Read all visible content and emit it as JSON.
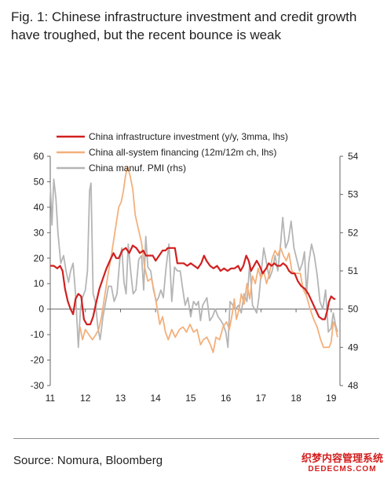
{
  "title": "Fig. 1: Chinese infrastructure investment and credit growth have troughed, but the recent bounce is weak",
  "source": "Source: Nomura, Bloomberg",
  "watermark": {
    "line1": "织梦内容管理系统",
    "line2": "DEDECMS.COM"
  },
  "chart_data": {
    "type": "line",
    "title": "",
    "xlabel": "",
    "ylabel": "",
    "x_ticks": [
      "11",
      "12",
      "13",
      "14",
      "15",
      "16",
      "17",
      "18",
      "19"
    ],
    "x_range": [
      2011.0,
      2019.25
    ],
    "left_axis": {
      "range": [
        -30,
        60
      ],
      "ticks": [
        -30,
        -20,
        -10,
        0,
        10,
        20,
        30,
        40,
        50,
        60
      ]
    },
    "right_axis": {
      "range": [
        48,
        54
      ],
      "ticks": [
        48,
        49,
        50,
        51,
        52,
        53,
        54
      ]
    },
    "legend_position": "top-left",
    "grid": false,
    "series": [
      {
        "name": "China infrastructure investment (y/y, 3mma, lhs)",
        "color": "#d11f1f",
        "axis": "left",
        "points": [
          [
            2011.0,
            17
          ],
          [
            2011.1,
            17
          ],
          [
            2011.2,
            16
          ],
          [
            2011.28,
            17
          ],
          [
            2011.35,
            15
          ],
          [
            2011.42,
            8
          ],
          [
            2011.5,
            3
          ],
          [
            2011.58,
            0
          ],
          [
            2011.65,
            -2
          ],
          [
            2011.72,
            4
          ],
          [
            2011.8,
            6
          ],
          [
            2011.88,
            5
          ],
          [
            2011.96,
            -4
          ],
          [
            2012.04,
            -6
          ],
          [
            2012.14,
            -6
          ],
          [
            2012.22,
            -3
          ],
          [
            2012.3,
            2
          ],
          [
            2012.4,
            8
          ],
          [
            2012.5,
            12
          ],
          [
            2012.6,
            16
          ],
          [
            2012.7,
            19
          ],
          [
            2012.8,
            22
          ],
          [
            2012.88,
            20
          ],
          [
            2012.95,
            20
          ],
          [
            2013.05,
            23
          ],
          [
            2013.15,
            24
          ],
          [
            2013.25,
            22
          ],
          [
            2013.35,
            25
          ],
          [
            2013.45,
            24
          ],
          [
            2013.55,
            22
          ],
          [
            2013.65,
            23
          ],
          [
            2013.72,
            21
          ],
          [
            2013.82,
            21
          ],
          [
            2013.92,
            21
          ],
          [
            2014.0,
            19
          ],
          [
            2014.1,
            21
          ],
          [
            2014.2,
            23
          ],
          [
            2014.28,
            23
          ],
          [
            2014.35,
            24
          ],
          [
            2014.45,
            24
          ],
          [
            2014.55,
            24
          ],
          [
            2014.62,
            18
          ],
          [
            2014.7,
            18
          ],
          [
            2014.8,
            18
          ],
          [
            2014.9,
            17
          ],
          [
            2015.0,
            18
          ],
          [
            2015.1,
            17
          ],
          [
            2015.2,
            16
          ],
          [
            2015.3,
            18
          ],
          [
            2015.38,
            21
          ],
          [
            2015.45,
            19
          ],
          [
            2015.55,
            17
          ],
          [
            2015.65,
            16
          ],
          [
            2015.75,
            17
          ],
          [
            2015.85,
            15
          ],
          [
            2015.95,
            16
          ],
          [
            2016.05,
            15
          ],
          [
            2016.15,
            16
          ],
          [
            2016.25,
            16
          ],
          [
            2016.35,
            17
          ],
          [
            2016.42,
            15
          ],
          [
            2016.5,
            17
          ],
          [
            2016.58,
            21
          ],
          [
            2016.65,
            19
          ],
          [
            2016.72,
            15
          ],
          [
            2016.8,
            17
          ],
          [
            2016.88,
            19
          ],
          [
            2016.96,
            17
          ],
          [
            2017.05,
            14
          ],
          [
            2017.15,
            16
          ],
          [
            2017.22,
            18
          ],
          [
            2017.3,
            17
          ],
          [
            2017.38,
            18
          ],
          [
            2017.46,
            17
          ],
          [
            2017.55,
            17
          ],
          [
            2017.63,
            18
          ],
          [
            2017.72,
            17
          ],
          [
            2017.8,
            15
          ],
          [
            2017.88,
            14
          ],
          [
            2017.96,
            14
          ],
          [
            2018.05,
            11
          ],
          [
            2018.15,
            9
          ],
          [
            2018.25,
            8
          ],
          [
            2018.35,
            6
          ],
          [
            2018.45,
            3
          ],
          [
            2018.55,
            0
          ],
          [
            2018.65,
            -3
          ],
          [
            2018.75,
            -4
          ],
          [
            2018.82,
            -4
          ],
          [
            2018.88,
            -1
          ],
          [
            2018.94,
            3
          ],
          [
            2019.0,
            5
          ],
          [
            2019.08,
            4
          ],
          [
            2019.12,
            4
          ]
        ]
      },
      {
        "name": "China all-system financing (12m/12m ch, lhs)",
        "color": "#f3b07c",
        "axis": "left",
        "points": [
          [
            2011.85,
            -7
          ],
          [
            2011.92,
            -12
          ],
          [
            2012.0,
            -8
          ],
          [
            2012.1,
            -10
          ],
          [
            2012.2,
            -12
          ],
          [
            2012.3,
            -10
          ],
          [
            2012.38,
            -8
          ],
          [
            2012.46,
            -3
          ],
          [
            2012.55,
            5
          ],
          [
            2012.65,
            14
          ],
          [
            2012.75,
            22
          ],
          [
            2012.85,
            31
          ],
          [
            2012.95,
            40
          ],
          [
            2013.02,
            42
          ],
          [
            2013.08,
            46
          ],
          [
            2013.14,
            52
          ],
          [
            2013.2,
            56
          ],
          [
            2013.28,
            52
          ],
          [
            2013.35,
            47
          ],
          [
            2013.42,
            37
          ],
          [
            2013.5,
            32
          ],
          [
            2013.6,
            26
          ],
          [
            2013.68,
            17
          ],
          [
            2013.78,
            11
          ],
          [
            2013.88,
            12
          ],
          [
            2013.96,
            7
          ],
          [
            2014.05,
            0
          ],
          [
            2014.12,
            -6
          ],
          [
            2014.2,
            -3
          ],
          [
            2014.28,
            -9
          ],
          [
            2014.36,
            -12
          ],
          [
            2014.46,
            -8
          ],
          [
            2014.56,
            -11
          ],
          [
            2014.68,
            -8
          ],
          [
            2014.78,
            -7
          ],
          [
            2014.88,
            -9
          ],
          [
            2014.98,
            -6
          ],
          [
            2015.08,
            -9
          ],
          [
            2015.18,
            -8
          ],
          [
            2015.28,
            -14
          ],
          [
            2015.36,
            -12
          ],
          [
            2015.46,
            -11
          ],
          [
            2015.56,
            -14
          ],
          [
            2015.64,
            -17
          ],
          [
            2015.72,
            -11
          ],
          [
            2015.82,
            -12
          ],
          [
            2015.92,
            -7
          ],
          [
            2016.02,
            -5
          ],
          [
            2016.1,
            -8
          ],
          [
            2016.18,
            -2
          ],
          [
            2016.24,
            4
          ],
          [
            2016.3,
            -4
          ],
          [
            2016.38,
            0
          ],
          [
            2016.44,
            6
          ],
          [
            2016.52,
            2
          ],
          [
            2016.6,
            10
          ],
          [
            2016.68,
            4
          ],
          [
            2016.76,
            13
          ],
          [
            2016.84,
            10
          ],
          [
            2016.92,
            16
          ],
          [
            2017.0,
            12
          ],
          [
            2017.08,
            15
          ],
          [
            2017.16,
            10
          ],
          [
            2017.24,
            14
          ],
          [
            2017.32,
            20
          ],
          [
            2017.4,
            23
          ],
          [
            2017.48,
            21
          ],
          [
            2017.56,
            24
          ],
          [
            2017.64,
            21
          ],
          [
            2017.72,
            19
          ],
          [
            2017.8,
            22
          ],
          [
            2017.88,
            15
          ],
          [
            2017.96,
            14
          ],
          [
            2018.04,
            14
          ],
          [
            2018.12,
            14
          ],
          [
            2018.2,
            8
          ],
          [
            2018.3,
            5
          ],
          [
            2018.4,
            0
          ],
          [
            2018.5,
            -4
          ],
          [
            2018.6,
            -7
          ],
          [
            2018.7,
            -12
          ],
          [
            2018.78,
            -15
          ],
          [
            2018.86,
            -15
          ],
          [
            2018.94,
            -15
          ],
          [
            2019.0,
            -13
          ],
          [
            2019.06,
            -5
          ],
          [
            2019.12,
            -7
          ],
          [
            2019.18,
            -11
          ]
        ]
      },
      {
        "name": "China manuf. PMI (rhs)",
        "color": "#b5b5b5",
        "axis": "right",
        "points": [
          [
            2011.0,
            53.3
          ],
          [
            2011.05,
            52.2
          ],
          [
            2011.1,
            53.4
          ],
          [
            2011.16,
            52.9
          ],
          [
            2011.22,
            52.0
          ],
          [
            2011.3,
            51.2
          ],
          [
            2011.38,
            51.4
          ],
          [
            2011.45,
            51.0
          ],
          [
            2011.52,
            50.7
          ],
          [
            2011.58,
            51.0
          ],
          [
            2011.65,
            51.2
          ],
          [
            2011.72,
            50.4
          ],
          [
            2011.8,
            49.0
          ],
          [
            2011.86,
            50.0
          ],
          [
            2011.92,
            50.3
          ],
          [
            2012.0,
            50.5
          ],
          [
            2012.06,
            51.0
          ],
          [
            2012.12,
            53.1
          ],
          [
            2012.16,
            53.3
          ],
          [
            2012.22,
            50.4
          ],
          [
            2012.28,
            50.2
          ],
          [
            2012.36,
            49.5
          ],
          [
            2012.42,
            49.2
          ],
          [
            2012.5,
            49.8
          ],
          [
            2012.58,
            50.2
          ],
          [
            2012.66,
            50.6
          ],
          [
            2012.74,
            50.6
          ],
          [
            2012.82,
            50.2
          ],
          [
            2012.9,
            50.4
          ],
          [
            2012.98,
            51.3
          ],
          [
            2013.04,
            51.6
          ],
          [
            2013.1,
            50.7
          ],
          [
            2013.16,
            50.4
          ],
          [
            2013.22,
            51.7
          ],
          [
            2013.3,
            50.9
          ],
          [
            2013.36,
            50.4
          ],
          [
            2013.44,
            50.5
          ],
          [
            2013.52,
            51.3
          ],
          [
            2013.6,
            51.4
          ],
          [
            2013.66,
            50.5
          ],
          [
            2013.72,
            51.9
          ],
          [
            2013.78,
            51.1
          ],
          [
            2013.86,
            51.0
          ],
          [
            2013.94,
            50.5
          ],
          [
            2014.02,
            50.2
          ],
          [
            2014.08,
            50.3
          ],
          [
            2014.15,
            50.5
          ],
          [
            2014.22,
            50.3
          ],
          [
            2014.3,
            51.1
          ],
          [
            2014.38,
            51.7
          ],
          [
            2014.46,
            50.2
          ],
          [
            2014.54,
            51.1
          ],
          [
            2014.62,
            51.0
          ],
          [
            2014.7,
            51.0
          ],
          [
            2014.76,
            50.6
          ],
          [
            2014.84,
            50.1
          ],
          [
            2014.92,
            50.3
          ],
          [
            2015.0,
            49.8
          ],
          [
            2015.08,
            50.2
          ],
          [
            2015.16,
            50.1
          ],
          [
            2015.22,
            50.2
          ],
          [
            2015.28,
            49.7
          ],
          [
            2015.34,
            50.1
          ],
          [
            2015.4,
            50.2
          ],
          [
            2015.46,
            50.3
          ],
          [
            2015.54,
            49.7
          ],
          [
            2015.62,
            49.8
          ],
          [
            2015.7,
            50.0
          ],
          [
            2015.78,
            49.8
          ],
          [
            2015.86,
            49.7
          ],
          [
            2015.92,
            49.6
          ],
          [
            2016.0,
            49.4
          ],
          [
            2016.06,
            49.0
          ],
          [
            2016.12,
            50.2
          ],
          [
            2016.2,
            50.1
          ],
          [
            2016.28,
            50.0
          ],
          [
            2016.36,
            50.1
          ],
          [
            2016.44,
            49.9
          ],
          [
            2016.52,
            50.4
          ],
          [
            2016.6,
            50.2
          ],
          [
            2016.68,
            51.2
          ],
          [
            2016.76,
            50.1
          ],
          [
            2016.82,
            50.0
          ],
          [
            2016.88,
            49.9
          ],
          [
            2016.94,
            50.3
          ],
          [
            2017.0,
            50.9
          ],
          [
            2017.08,
            51.6
          ],
          [
            2017.16,
            51.2
          ],
          [
            2017.24,
            50.8
          ],
          [
            2017.32,
            51.0
          ],
          [
            2017.4,
            51.4
          ],
          [
            2017.48,
            51.0
          ],
          [
            2017.56,
            51.7
          ],
          [
            2017.62,
            52.4
          ],
          [
            2017.7,
            51.6
          ],
          [
            2017.78,
            51.8
          ],
          [
            2017.86,
            52.3
          ],
          [
            2017.94,
            51.6
          ],
          [
            2018.02,
            51.3
          ],
          [
            2018.1,
            51.0
          ],
          [
            2018.18,
            51.2
          ],
          [
            2018.24,
            51.5
          ],
          [
            2018.3,
            50.4
          ],
          [
            2018.36,
            51.2
          ],
          [
            2018.44,
            51.7
          ],
          [
            2018.52,
            51.4
          ],
          [
            2018.6,
            50.9
          ],
          [
            2018.68,
            50.2
          ],
          [
            2018.76,
            50.0
          ],
          [
            2018.84,
            50.5
          ],
          [
            2018.92,
            49.4
          ],
          [
            2019.0,
            49.5
          ],
          [
            2019.06,
            49.9
          ],
          [
            2019.12,
            49.6
          ],
          [
            2019.18,
            49.4
          ]
        ]
      }
    ]
  }
}
